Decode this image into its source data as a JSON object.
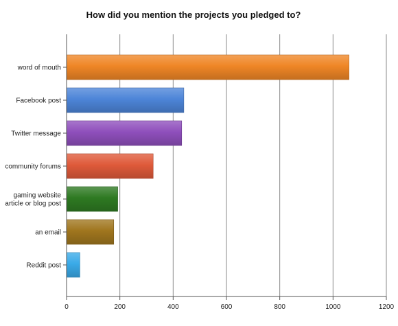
{
  "chart_data": {
    "type": "bar",
    "orientation": "horizontal",
    "title": "How did you mention the projects you pledged to?",
    "categories": [
      "word of mouth",
      "Facebook post",
      "Twitter message",
      "community forums",
      [
        "gaming website",
        "article or blog post"
      ],
      "an email",
      "Reddit post"
    ],
    "values": [
      1060,
      440,
      432,
      325,
      192,
      177,
      50
    ],
    "colors": [
      "#ef8626",
      "#4d85d8",
      "#8f4fbc",
      "#df5a3a",
      "#2e7a22",
      "#a0761e",
      "#3aaae8"
    ],
    "xlim": [
      0,
      1200
    ],
    "xticks": [
      0,
      200,
      400,
      600,
      800,
      1000,
      1200
    ],
    "xlabel": "",
    "ylabel": "",
    "grid": true,
    "legend": "none"
  }
}
